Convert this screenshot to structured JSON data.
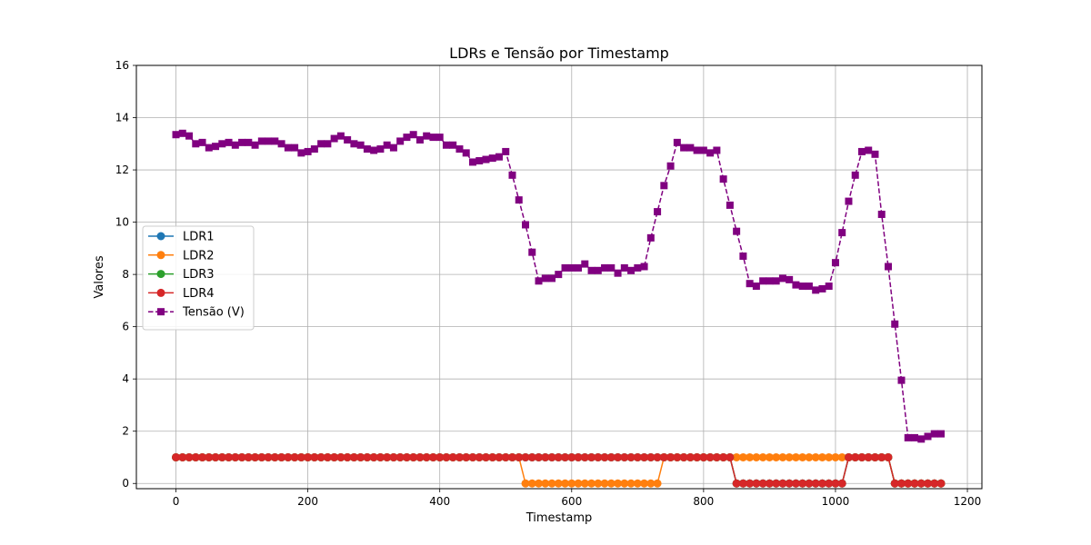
{
  "chart_data": {
    "type": "line",
    "title": "LDRs e Tensão por Timestamp",
    "xlabel": "Timestamp",
    "ylabel": "Valores",
    "xlim": [
      -60,
      1222
    ],
    "ylim": [
      -0.2,
      16
    ],
    "xticks": [
      0,
      200,
      400,
      600,
      800,
      1000,
      1200
    ],
    "yticks": [
      0,
      2,
      4,
      6,
      8,
      10,
      12,
      14,
      16
    ],
    "grid": true,
    "legend_position": "center-left",
    "x_start": 0,
    "x_step": 10,
    "series": [
      {
        "name": "LDR1",
        "color": "#1f77b4",
        "marker": "circle",
        "linestyle": "solid",
        "values": [
          1,
          1,
          1,
          1,
          1,
          1,
          1,
          1,
          1,
          1,
          1,
          1,
          1,
          1,
          1,
          1,
          1,
          1,
          1,
          1,
          1,
          1,
          1,
          1,
          1,
          1,
          1,
          1,
          1,
          1,
          1,
          1,
          1,
          1,
          1,
          1,
          1,
          1,
          1,
          1,
          1,
          1,
          1,
          1,
          1,
          1,
          1,
          1,
          1,
          1,
          1,
          1,
          1,
          1,
          1,
          1,
          1,
          1,
          1,
          1,
          1,
          1,
          1,
          1,
          1,
          1,
          1,
          1,
          1,
          1,
          1,
          1,
          1,
          1,
          1,
          1,
          1,
          1,
          1,
          1,
          1,
          1,
          1,
          1,
          1,
          0,
          0,
          0,
          0,
          0,
          0,
          0,
          0,
          0,
          0,
          0,
          0,
          0,
          0,
          0,
          0,
          0,
          1,
          1,
          1,
          1,
          1,
          1,
          1,
          0,
          0,
          0,
          0,
          0,
          0,
          0,
          0
        ]
      },
      {
        "name": "LDR2",
        "color": "#ff7f0e",
        "marker": "circle",
        "linestyle": "solid",
        "values": [
          1,
          1,
          1,
          1,
          1,
          1,
          1,
          1,
          1,
          1,
          1,
          1,
          1,
          1,
          1,
          1,
          1,
          1,
          1,
          1,
          1,
          1,
          1,
          1,
          1,
          1,
          1,
          1,
          1,
          1,
          1,
          1,
          1,
          1,
          1,
          1,
          1,
          1,
          1,
          1,
          1,
          1,
          1,
          1,
          1,
          1,
          1,
          1,
          1,
          1,
          1,
          1,
          1,
          0,
          0,
          0,
          0,
          0,
          0,
          0,
          0,
          0,
          0,
          0,
          0,
          0,
          0,
          0,
          0,
          0,
          0,
          0,
          0,
          0,
          1,
          1,
          1,
          1,
          1,
          1,
          1,
          1,
          1,
          1,
          1,
          1,
          1,
          1,
          1,
          1,
          1,
          1,
          1,
          1,
          1,
          1,
          1,
          1,
          1,
          1,
          1,
          1,
          1,
          1,
          1,
          1,
          1,
          1,
          1,
          0,
          0,
          0,
          0,
          0,
          0,
          0,
          0
        ]
      },
      {
        "name": "LDR3",
        "color": "#2ca02c",
        "marker": "circle",
        "linestyle": "solid",
        "values": [
          1,
          1,
          1,
          1,
          1,
          1,
          1,
          1,
          1,
          1,
          1,
          1,
          1,
          1,
          1,
          1,
          1,
          1,
          1,
          1,
          1,
          1,
          1,
          1,
          1,
          1,
          1,
          1,
          1,
          1,
          1,
          1,
          1,
          1,
          1,
          1,
          1,
          1,
          1,
          1,
          1,
          1,
          1,
          1,
          1,
          1,
          1,
          1,
          1,
          1,
          1,
          1,
          1,
          1,
          1,
          1,
          1,
          1,
          1,
          1,
          1,
          1,
          1,
          1,
          1,
          1,
          1,
          1,
          1,
          1,
          1,
          1,
          1,
          1,
          1,
          1,
          1,
          1,
          1,
          1,
          1,
          1,
          1,
          1,
          1,
          0,
          0,
          0,
          0,
          0,
          0,
          0,
          0,
          0,
          0,
          0,
          0,
          0,
          0,
          0,
          0,
          0,
          1,
          1,
          1,
          1,
          1,
          1,
          1,
          0,
          0,
          0,
          0,
          0,
          0,
          0,
          0
        ]
      },
      {
        "name": "LDR4",
        "color": "#d62728",
        "marker": "circle",
        "linestyle": "solid",
        "values": [
          1,
          1,
          1,
          1,
          1,
          1,
          1,
          1,
          1,
          1,
          1,
          1,
          1,
          1,
          1,
          1,
          1,
          1,
          1,
          1,
          1,
          1,
          1,
          1,
          1,
          1,
          1,
          1,
          1,
          1,
          1,
          1,
          1,
          1,
          1,
          1,
          1,
          1,
          1,
          1,
          1,
          1,
          1,
          1,
          1,
          1,
          1,
          1,
          1,
          1,
          1,
          1,
          1,
          1,
          1,
          1,
          1,
          1,
          1,
          1,
          1,
          1,
          1,
          1,
          1,
          1,
          1,
          1,
          1,
          1,
          1,
          1,
          1,
          1,
          1,
          1,
          1,
          1,
          1,
          1,
          1,
          1,
          1,
          1,
          1,
          0,
          0,
          0,
          0,
          0,
          0,
          0,
          0,
          0,
          0,
          0,
          0,
          0,
          0,
          0,
          0,
          0,
          1,
          1,
          1,
          1,
          1,
          1,
          1,
          0,
          0,
          0,
          0,
          0,
          0,
          0,
          0
        ]
      },
      {
        "name": "Tensão (V)",
        "color": "#800080",
        "marker": "square",
        "linestyle": "dashed",
        "values": [
          13.35,
          13.4,
          13.3,
          13.0,
          13.05,
          12.85,
          12.9,
          13.0,
          13.05,
          12.95,
          13.05,
          13.05,
          12.95,
          13.1,
          13.1,
          13.1,
          13.0,
          12.85,
          12.85,
          12.65,
          12.7,
          12.8,
          13.0,
          13.0,
          13.2,
          13.3,
          13.15,
          13.0,
          12.95,
          12.8,
          12.75,
          12.8,
          12.95,
          12.85,
          13.1,
          13.25,
          13.35,
          13.15,
          13.3,
          13.25,
          13.25,
          12.95,
          12.95,
          12.8,
          12.65,
          12.3,
          12.35,
          12.4,
          12.45,
          12.5,
          12.7,
          11.8,
          10.85,
          9.9,
          8.85,
          7.75,
          7.85,
          7.85,
          8.0,
          8.25,
          8.25,
          8.25,
          8.4,
          8.15,
          8.15,
          8.25,
          8.25,
          8.05,
          8.25,
          8.15,
          8.25,
          8.3,
          9.4,
          10.4,
          11.4,
          12.15,
          13.05,
          12.85,
          12.85,
          12.75,
          12.75,
          12.65,
          12.75,
          11.65,
          10.65,
          9.65,
          8.7,
          7.65,
          7.55,
          7.75,
          7.75,
          7.75,
          7.85,
          7.8,
          7.6,
          7.55,
          7.55,
          7.4,
          7.45,
          7.55,
          8.45,
          9.6,
          10.8,
          11.8,
          12.7,
          12.75,
          12.6,
          10.3,
          8.3,
          6.1,
          3.95,
          1.75,
          1.75,
          1.7,
          1.8,
          1.9,
          1.9
        ]
      }
    ]
  }
}
